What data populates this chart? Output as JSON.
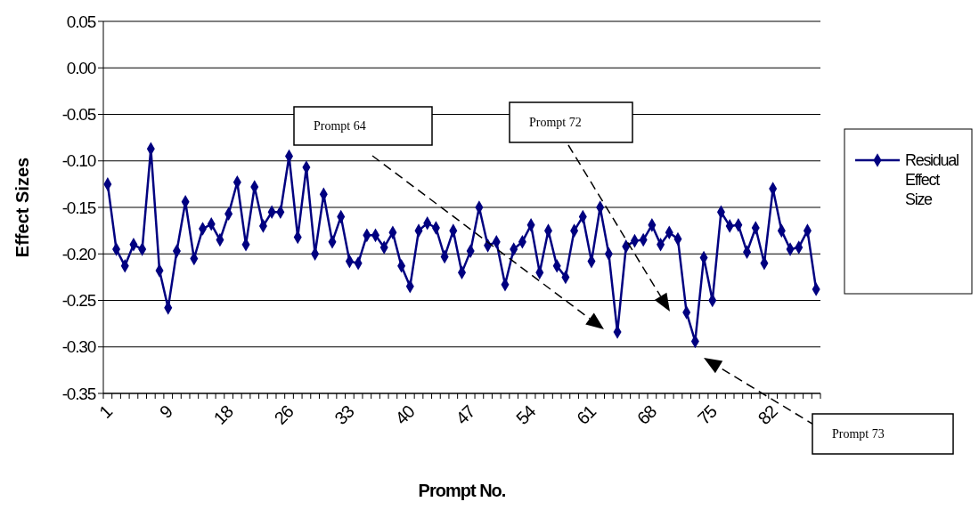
{
  "chart_data": {
    "type": "line",
    "xlabel": "Prompt No.",
    "ylabel": "Effect Sizes",
    "categories": [
      "1",
      null,
      null,
      null,
      null,
      null,
      null,
      "9",
      null,
      null,
      null,
      null,
      null,
      null,
      "18",
      null,
      null,
      null,
      null,
      null,
      null,
      "26",
      null,
      null,
      null,
      null,
      null,
      null,
      "33",
      null,
      null,
      null,
      null,
      null,
      null,
      "40",
      null,
      null,
      null,
      null,
      null,
      null,
      "47",
      null,
      null,
      null,
      null,
      null,
      null,
      "54",
      null,
      null,
      null,
      null,
      null,
      null,
      "61",
      null,
      null,
      null,
      null,
      null,
      null,
      "68",
      null,
      null,
      null,
      null,
      null,
      null,
      "75",
      null,
      null,
      null,
      null,
      null,
      null,
      "82",
      null,
      null,
      null,
      null,
      null
    ],
    "series": [
      {
        "name": "Residual Effect Size",
        "color": "#000080",
        "values": [
          -0.125,
          -0.195,
          -0.213,
          -0.19,
          -0.195,
          -0.087,
          -0.218,
          -0.258,
          -0.197,
          -0.144,
          -0.205,
          -0.173,
          -0.168,
          -0.185,
          -0.157,
          -0.123,
          -0.19,
          -0.128,
          -0.17,
          -0.155,
          -0.155,
          -0.095,
          -0.182,
          -0.107,
          -0.2,
          -0.136,
          -0.187,
          -0.16,
          -0.208,
          -0.21,
          -0.18,
          -0.18,
          -0.193,
          -0.177,
          -0.213,
          -0.235,
          -0.175,
          -0.167,
          -0.172,
          -0.203,
          -0.175,
          -0.22,
          -0.197,
          -0.15,
          -0.191,
          -0.187,
          -0.233,
          -0.195,
          -0.187,
          -0.169,
          -0.22,
          -0.175,
          -0.213,
          -0.225,
          -0.175,
          -0.16,
          -0.208,
          -0.15,
          -0.2,
          -0.284,
          -0.192,
          -0.186,
          -0.185,
          -0.169,
          -0.19,
          -0.177,
          -0.184,
          -0.263,
          -0.294,
          -0.204,
          -0.25,
          -0.155,
          -0.17,
          -0.169,
          -0.198,
          -0.172,
          -0.21,
          -0.13,
          -0.175,
          -0.195,
          -0.193,
          -0.175,
          -0.238
        ]
      }
    ],
    "ylim": [
      -0.35,
      0.05
    ],
    "yticks": [
      -0.35,
      {
        "value": -0.3,
        "label": "-0.30"
      },
      -0.25,
      {
        "value": -0.2,
        "label": "-0.20"
      },
      -0.15,
      {
        "value": -0.1,
        "label": "-0.10"
      },
      -0.05,
      {
        "value": 0,
        "label": "0.00"
      },
      0.05
    ],
    "grid": "y",
    "legend": "right",
    "marker": "diamond",
    "annotations": [
      "Prompt 64",
      "Prompt 72",
      "Prompt 73"
    ]
  }
}
